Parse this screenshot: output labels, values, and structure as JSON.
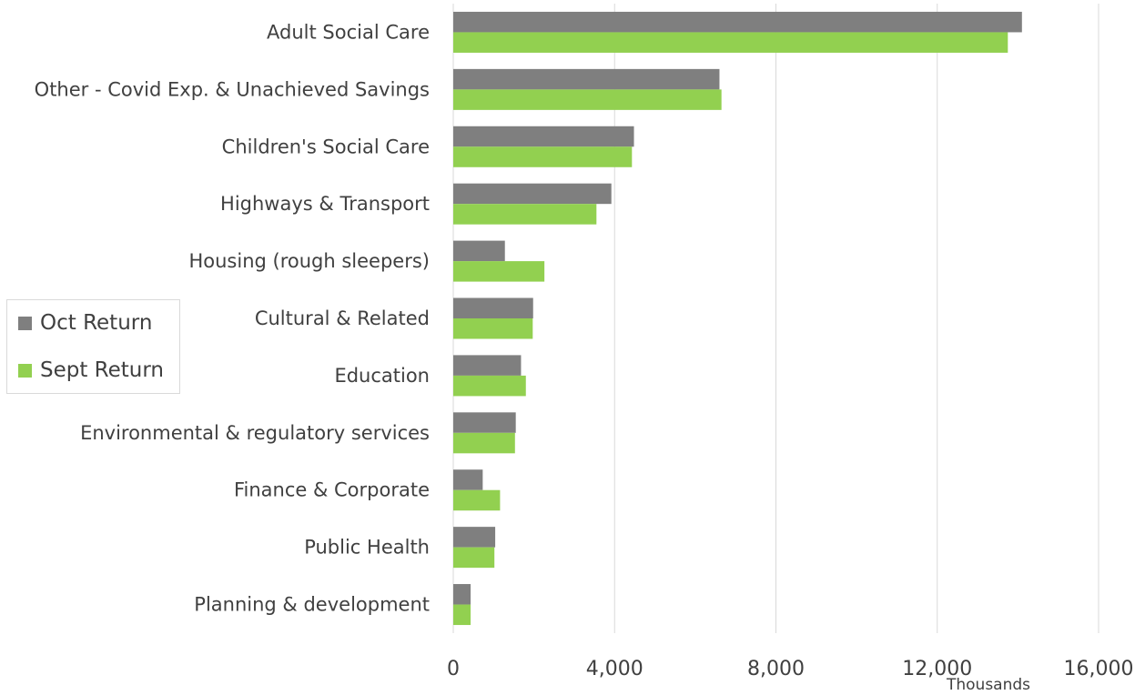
{
  "chart_data": {
    "type": "bar",
    "orientation": "horizontal",
    "categories": [
      "Adult Social Care",
      "Other - Covid Exp. & Unachieved Savings",
      "Children's Social Care",
      "Highways & Transport",
      "Housing (rough sleepers)",
      "Cultural & Related",
      "Education",
      "Environmental & regulatory services",
      "Finance & Corporate",
      "Public Health",
      "Planning & development"
    ],
    "series": [
      {
        "name": "Oct Return",
        "color": "#7f7f7f",
        "values": [
          14100,
          6600,
          4480,
          3920,
          1280,
          1980,
          1680,
          1550,
          730,
          1040,
          430
        ]
      },
      {
        "name": "Sept Return",
        "color": "#92d050",
        "values": [
          13750,
          6650,
          4430,
          3550,
          2260,
          1970,
          1800,
          1530,
          1160,
          1020,
          430
        ]
      }
    ],
    "xlim": [
      0,
      16000
    ],
    "xticks": [
      "0",
      "4,000",
      "8,000",
      "12,000",
      "16,000"
    ],
    "xlabel": "Thousands",
    "grid": "vertical",
    "legend_position": "left"
  }
}
